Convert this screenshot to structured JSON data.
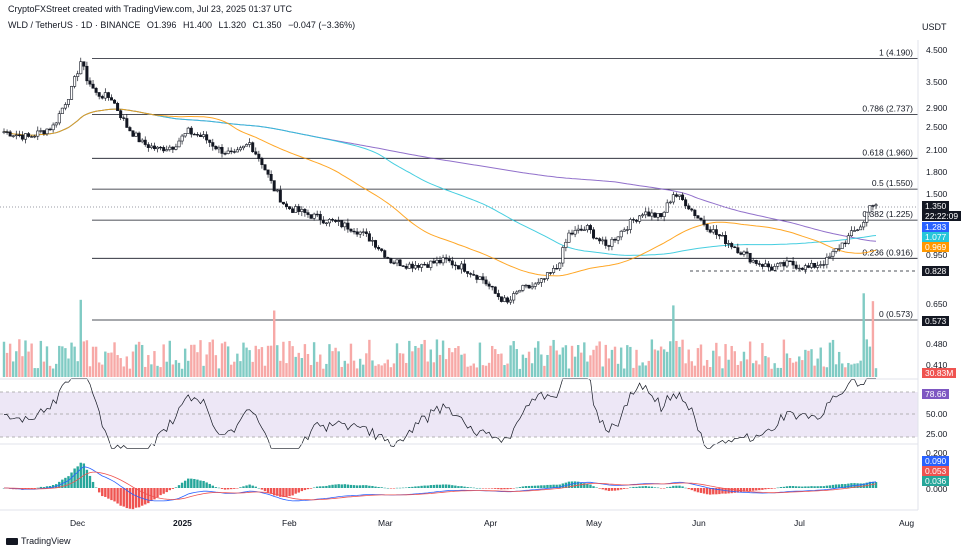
{
  "header": {
    "credit": "CryptoFXStreet created with TradingView.com, Jul 23, 2025 01:37 UTC",
    "currency": "USDT"
  },
  "legend": {
    "symbol": "WLD / TetherUS · 1D · BINANCE",
    "open": "O1.396",
    "high": "H1.400",
    "low": "L1.320",
    "close": "C1.350",
    "change": "−0.047 (−3.36%)"
  },
  "price_axis": {
    "ticks": [
      "4.500",
      "3.500",
      "2.900",
      "2.500",
      "2.100",
      "1.800",
      "1.500",
      "0.950",
      "0.650",
      "0.480",
      "0.410"
    ],
    "markers": [
      {
        "label": "1.350",
        "color": "#131722"
      },
      {
        "label": "22:22:09",
        "color": "#131722"
      },
      {
        "label": "1.283",
        "color": "#2962ff"
      },
      {
        "label": "1.077",
        "color": "#26c6da"
      },
      {
        "label": "0.969",
        "color": "#ff9800"
      },
      {
        "label": "0.828",
        "color": "#131722"
      },
      {
        "label": "0.573",
        "color": "#131722"
      },
      {
        "label": "30.83M",
        "color": "#ef5350"
      }
    ]
  },
  "rsi_axis": {
    "marker": "78.66",
    "ticks": [
      "50.00",
      "25.00"
    ]
  },
  "macd_axis": {
    "ticks": [
      "0.200",
      "0.000"
    ],
    "markers": [
      {
        "label": "0.090",
        "color": "#2962ff"
      },
      {
        "label": "0.053",
        "color": "#ef5350"
      },
      {
        "label": "0.036",
        "color": "#26a69a"
      }
    ]
  },
  "time_axis": [
    "Dec",
    "2025",
    "Feb",
    "Mar",
    "Apr",
    "May",
    "Jun",
    "Jul",
    "Aug"
  ],
  "fib_levels": [
    {
      "label": "1 (4.190)",
      "price": 4.19
    },
    {
      "label": "0.786 (2.737)",
      "price": 2.737
    },
    {
      "label": "0.618 (1.960)",
      "price": 1.96
    },
    {
      "label": "0.5 (1.550)",
      "price": 1.55
    },
    {
      "label": "0.382 (1.225)",
      "price": 1.225
    },
    {
      "label": "0.236 (0.916)",
      "price": 0.916
    },
    {
      "label": "0 (0.573)",
      "price": 0.573
    }
  ],
  "chart_data": {
    "type": "candlestick",
    "symbol": "WLD / TetherUS",
    "timeframe": "1D",
    "x_range": [
      "2024-11-13",
      "2025-07-23"
    ],
    "y_scale": "log",
    "last_close": 1.35,
    "support_line": 0.828,
    "moving_averages": [
      {
        "color": "#7e57c2",
        "last": 1.283
      },
      {
        "color": "#26c6da",
        "last": 1.077
      },
      {
        "color": "#ff9800",
        "last": 0.969
      }
    ],
    "price_path": [
      [
        0,
        2.4
      ],
      [
        8,
        2.3
      ],
      [
        16,
        2.5
      ],
      [
        22,
        3.3
      ],
      [
        25,
        4.1
      ],
      [
        27,
        3.6
      ],
      [
        30,
        3.2
      ],
      [
        35,
        3.1
      ],
      [
        40,
        2.5
      ],
      [
        45,
        2.2
      ],
      [
        50,
        2.1
      ],
      [
        55,
        2.15
      ],
      [
        60,
        2.4
      ],
      [
        65,
        2.3
      ],
      [
        70,
        2.1
      ],
      [
        75,
        2.0
      ],
      [
        80,
        2.2
      ],
      [
        84,
        1.9
      ],
      [
        88,
        1.55
      ],
      [
        92,
        1.35
      ],
      [
        97,
        1.3
      ],
      [
        102,
        1.25
      ],
      [
        108,
        1.2
      ],
      [
        114,
        1.15
      ],
      [
        120,
        1.05
      ],
      [
        126,
        0.9
      ],
      [
        132,
        0.87
      ],
      [
        138,
        0.88
      ],
      [
        144,
        0.9
      ],
      [
        150,
        0.85
      ],
      [
        156,
        0.78
      ],
      [
        160,
        0.7
      ],
      [
        164,
        0.65
      ],
      [
        168,
        0.72
      ],
      [
        174,
        0.75
      ],
      [
        180,
        0.85
      ],
      [
        184,
        1.1
      ],
      [
        190,
        1.15
      ],
      [
        196,
        1.0
      ],
      [
        202,
        1.15
      ],
      [
        208,
        1.3
      ],
      [
        214,
        1.25
      ],
      [
        218,
        1.5
      ],
      [
        222,
        1.4
      ],
      [
        226,
        1.25
      ],
      [
        232,
        1.1
      ],
      [
        238,
        1.0
      ],
      [
        244,
        0.9
      ],
      [
        250,
        0.85
      ],
      [
        256,
        0.88
      ],
      [
        262,
        0.85
      ],
      [
        268,
        0.9
      ],
      [
        272,
        1.0
      ],
      [
        276,
        1.1
      ],
      [
        280,
        1.2
      ],
      [
        282,
        1.4
      ],
      [
        284,
        1.35
      ]
    ],
    "rsi": {
      "last": 78.66,
      "levels": [
        70,
        50,
        30
      ]
    },
    "macd": {
      "macd": 0.09,
      "signal": 0.053,
      "histogram": 0.036
    }
  }
}
